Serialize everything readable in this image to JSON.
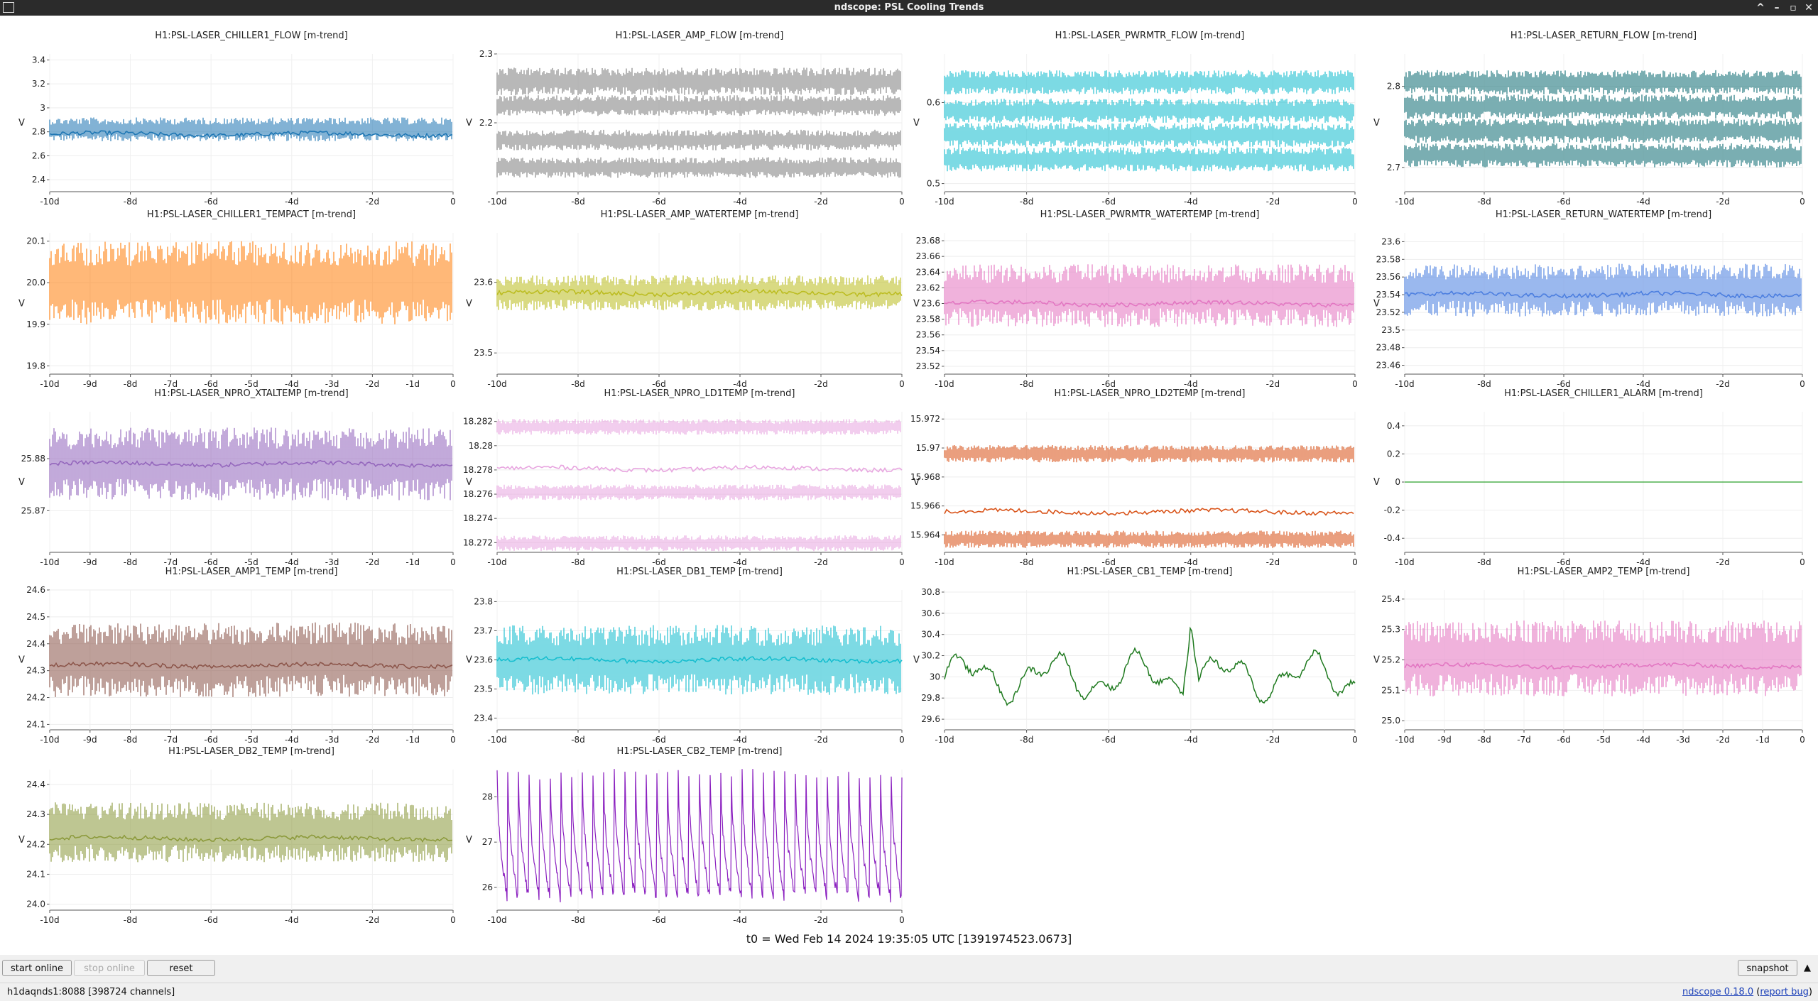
{
  "window": {
    "title": "ndscope: PSL Cooling Trends",
    "controls": [
      "^",
      "–",
      "▫",
      "✕"
    ]
  },
  "plots": [
    {
      "title": "H1:PSL-LASER_CHILLER1_FLOW [m-trend]",
      "color": "#1f77b4",
      "ylabel": "V",
      "yticks": [
        "3.4",
        "3.2",
        "3",
        "2.8",
        "2.6",
        "2.4"
      ],
      "xticks": [
        "-10d",
        "-8d",
        "-6d",
        "-4d",
        "-2d",
        "0"
      ],
      "yrange": [
        2.3,
        3.45
      ],
      "style": "band",
      "bands": [
        [
          2.72,
          2.92
        ]
      ],
      "center": 2.78
    },
    {
      "title": "H1:PSL-LASER_AMP_FLOW [m-trend]",
      "color": "#7f7f7f",
      "ylabel": "V",
      "yticks": [
        "2.3",
        "2.2"
      ],
      "xticks": [
        "-10d",
        "-8d",
        "-6d",
        "-4d",
        "-2d",
        "0"
      ],
      "yrange": [
        2.1,
        2.3
      ],
      "style": "band",
      "bands": [
        [
          2.24,
          2.28
        ],
        [
          2.21,
          2.24
        ],
        [
          2.16,
          2.19
        ],
        [
          2.12,
          2.15
        ]
      ]
    },
    {
      "title": "H1:PSL-LASER_PWRMTR_FLOW [m-trend]",
      "color": "#17becf",
      "ylabel": "V",
      "yticks": [
        "0.6",
        "0.5"
      ],
      "xticks": [
        "-10d",
        "-8d",
        "-6d",
        "-4d",
        "-2d",
        "0"
      ],
      "yrange": [
        0.49,
        0.66
      ],
      "style": "band",
      "bands": [
        [
          0.61,
          0.64
        ],
        [
          0.575,
          0.605
        ],
        [
          0.545,
          0.575
        ],
        [
          0.515,
          0.545
        ]
      ]
    },
    {
      "title": "H1:PSL-LASER_RETURN_FLOW [m-trend]",
      "color": "#136f75",
      "ylabel": "V",
      "yticks": [
        "2.8",
        "2.7"
      ],
      "xticks": [
        "-10d",
        "-8d",
        "-6d",
        "-4d",
        "-2d",
        "0"
      ],
      "yrange": [
        2.67,
        2.84
      ],
      "style": "band",
      "bands": [
        [
          2.79,
          2.82
        ],
        [
          2.76,
          2.79
        ],
        [
          2.73,
          2.76
        ],
        [
          2.7,
          2.73
        ]
      ]
    },
    {
      "title": "H1:PSL-LASER_CHILLER1_TEMPACT [m-trend]",
      "color": "#ff7f0e",
      "ylabel": "V",
      "yticks": [
        "20.1",
        "20.0",
        "19.9",
        "19.8"
      ],
      "xticks": [
        "-10d",
        "-9d",
        "-8d",
        "-7d",
        "-6d",
        "-5d",
        "-4d",
        "-3d",
        "-2d",
        "-1d",
        "0"
      ],
      "yrange": [
        19.78,
        20.12
      ],
      "style": "band",
      "bands": [
        [
          19.9,
          20.1
        ]
      ]
    },
    {
      "title": "H1:PSL-LASER_AMP_WATERTEMP [m-trend]",
      "color": "#bcbd22",
      "ylabel": "V",
      "yticks": [
        "23.6",
        "23.5"
      ],
      "xticks": [
        "-10d",
        "-8d",
        "-6d",
        "-4d",
        "-2d",
        "0"
      ],
      "yrange": [
        23.47,
        23.67
      ],
      "style": "band",
      "bands": [
        [
          23.56,
          23.61
        ]
      ],
      "center": 23.585
    },
    {
      "title": "H1:PSL-LASER_PWRMTR_WATERTEMP [m-trend]",
      "color": "#e377c2",
      "ylabel": "V",
      "yticks": [
        "23.68",
        "23.66",
        "23.64",
        "23.62",
        "23.6",
        "23.58",
        "23.56",
        "23.54",
        "23.52"
      ],
      "xticks": [
        "-10d",
        "-8d",
        "-6d",
        "-4d",
        "-2d",
        "0"
      ],
      "yrange": [
        23.51,
        23.69
      ],
      "style": "band",
      "bands": [
        [
          23.57,
          23.65
        ]
      ],
      "center": 23.6
    },
    {
      "title": "H1:PSL-LASER_RETURN_WATERTEMP [m-trend]",
      "color": "#4c7fe0",
      "ylabel": "V",
      "yticks": [
        "23.6",
        "23.58",
        "23.56",
        "23.54",
        "23.52",
        "23.5",
        "23.48",
        "23.46"
      ],
      "xticks": [
        "-10d",
        "-8d",
        "-6d",
        "-4d",
        "-2d",
        "0"
      ],
      "yrange": [
        23.45,
        23.61
      ],
      "style": "band",
      "bands": [
        [
          23.515,
          23.575
        ]
      ],
      "center": 23.54
    },
    {
      "title": "H1:PSL-LASER_NPRO_XTALTEMP [m-trend]",
      "color": "#9467bd",
      "ylabel": "V",
      "yticks": [
        "25.88",
        "25.87"
      ],
      "xticks": [
        "-10d",
        "-9d",
        "-8d",
        "-7d",
        "-6d",
        "-5d",
        "-4d",
        "-3d",
        "-2d",
        "-1d",
        "0"
      ],
      "yrange": [
        25.862,
        25.889
      ],
      "style": "walk",
      "bands": [
        [
          25.872,
          25.886
        ]
      ],
      "center": 25.879
    },
    {
      "title": "H1:PSL-LASER_NPRO_LD1TEMP [m-trend]",
      "color": "#e8a6e0",
      "ylabel": "V",
      "yticks": [
        "18.282",
        "18.28",
        "18.278",
        "18.276",
        "18.274",
        "18.272"
      ],
      "xticks": [
        "-10d",
        "-8d",
        "-6d",
        "-4d",
        "-2d",
        "0"
      ],
      "yrange": [
        18.2712,
        18.2828
      ],
      "style": "levels",
      "bands": [
        [
          18.2809,
          18.2822
        ],
        [
          18.2755,
          18.2768
        ],
        [
          18.2713,
          18.2726
        ]
      ],
      "center": 18.2781
    },
    {
      "title": "H1:PSL-LASER_NPRO_LD2TEMP [m-trend]",
      "color": "#d9541a",
      "ylabel": "V",
      "yticks": [
        "15.972",
        "15.97",
        "15.968",
        "15.966",
        "15.964"
      ],
      "xticks": [
        "-10d",
        "-8d",
        "-6d",
        "-4d",
        "-2d",
        "0"
      ],
      "yrange": [
        15.9628,
        15.9725
      ],
      "style": "levels",
      "bands": [
        [
          15.969,
          15.9702
        ],
        [
          15.9631,
          15.9643
        ]
      ],
      "center": 15.9656
    },
    {
      "title": "H1:PSL-LASER_CHILLER1_ALARM [m-trend]",
      "color": "#2ca02c",
      "ylabel": "V",
      "yticks": [
        "0.4",
        "0.2",
        "0",
        "-0.2",
        "-0.4"
      ],
      "xticks": [
        "-10d",
        "-8d",
        "-6d",
        "-4d",
        "-2d",
        "0"
      ],
      "yrange": [
        -0.5,
        0.5
      ],
      "style": "flat",
      "bands": [],
      "center": 0
    },
    {
      "title": "H1:PSL-LASER_AMP1_TEMP [m-trend]",
      "color": "#8c564b",
      "ylabel": "V",
      "yticks": [
        "24.6",
        "24.5",
        "24.4",
        "24.3",
        "24.2",
        "24.1"
      ],
      "xticks": [
        "-10d",
        "-9d",
        "-8d",
        "-7d",
        "-6d",
        "-5d",
        "-4d",
        "-3d",
        "-2d",
        "-1d",
        "0"
      ],
      "yrange": [
        24.08,
        24.6
      ],
      "style": "band",
      "bands": [
        [
          24.2,
          24.48
        ]
      ],
      "center": 24.32
    },
    {
      "title": "H1:PSL-LASER_DB1_TEMP [m-trend]",
      "color": "#17becf",
      "ylabel": "V",
      "yticks": [
        "23.8",
        "23.7",
        "23.6",
        "23.5",
        "23.4"
      ],
      "xticks": [
        "-10d",
        "-8d",
        "-6d",
        "-4d",
        "-2d",
        "0"
      ],
      "yrange": [
        23.36,
        23.84
      ],
      "style": "band",
      "bands": [
        [
          23.48,
          23.72
        ]
      ],
      "center": 23.6
    },
    {
      "title": "H1:PSL-LASER_CB1_TEMP [m-trend]",
      "color": "#1f7a1f",
      "ylabel": "V",
      "yticks": [
        "30.8",
        "30.6",
        "30.4",
        "30.2",
        "30",
        "29.8",
        "29.6"
      ],
      "xticks": [
        "-10d",
        "-8d",
        "-6d",
        "-4d",
        "-2d",
        "0"
      ],
      "yrange": [
        29.5,
        30.82
      ],
      "style": "trace",
      "bands": [],
      "center": 30
    },
    {
      "title": "H1:PSL-LASER_AMP2_TEMP [m-trend]",
      "color": "#e377c2",
      "ylabel": "V",
      "yticks": [
        "25.4",
        "25.3",
        "25.2",
        "25.1",
        "25.0"
      ],
      "xticks": [
        "-10d",
        "-9d",
        "-8d",
        "-7d",
        "-6d",
        "-5d",
        "-4d",
        "-3d",
        "-2d",
        "-1d",
        "0"
      ],
      "yrange": [
        24.97,
        25.43
      ],
      "style": "band",
      "bands": [
        [
          25.08,
          25.33
        ]
      ],
      "center": 25.18
    },
    {
      "title": "H1:PSL-LASER_DB2_TEMP [m-trend]",
      "color": "#8c9a3c",
      "ylabel": "V",
      "yticks": [
        "24.4",
        "24.3",
        "24.2",
        "24.1",
        "24.0"
      ],
      "xticks": [
        "-10d",
        "-8d",
        "-6d",
        "-4d",
        "-2d",
        "0"
      ],
      "yrange": [
        23.98,
        24.45
      ],
      "style": "band",
      "bands": [
        [
          24.14,
          24.34
        ]
      ],
      "center": 24.22
    },
    {
      "title": "H1:PSL-LASER_CB2_TEMP [m-trend]",
      "color": "#8a1fbf",
      "ylabel": "V",
      "yticks": [
        "28",
        "27",
        "26"
      ],
      "xticks": [
        "-10d",
        "-8d",
        "-6d",
        "-4d",
        "-2d",
        "0"
      ],
      "yrange": [
        25.5,
        28.6
      ],
      "style": "sawtooth",
      "bands": [
        [
          25.7,
          28.5
        ]
      ],
      "center": 26.8
    }
  ],
  "t0_label": "t0 = Wed Feb 14 2024 19:35:05 UTC [1391974523.0673]",
  "buttons": {
    "start_online": "start online",
    "stop_online": "stop online",
    "reset": "reset",
    "snapshot": "snapshot"
  },
  "status": {
    "server": "h1daqnds1:8088  [398724 channels]",
    "version_link": "ndscope 0.18.0",
    "report_link": "report bug"
  }
}
